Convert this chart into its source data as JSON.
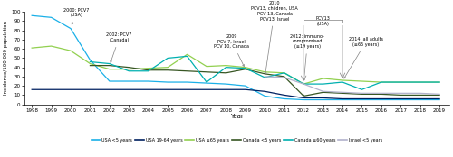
{
  "years": [
    1998,
    1999,
    2000,
    2001,
    2002,
    2003,
    2004,
    2005,
    2006,
    2007,
    2008,
    2009,
    2010,
    2011,
    2012,
    2013,
    2014,
    2015,
    2016,
    2017,
    2018,
    2019
  ],
  "usa_lt5": [
    96,
    94,
    82,
    48,
    25,
    25,
    25,
    24,
    24,
    23,
    22,
    20,
    9,
    6,
    5,
    5,
    5,
    5,
    5,
    5,
    5,
    5
  ],
  "usa_19_64": [
    16,
    16,
    16,
    16,
    16,
    16,
    16,
    16,
    16,
    16,
    16,
    16,
    14,
    10,
    7,
    7,
    6,
    6,
    6,
    6,
    6,
    6
  ],
  "usa_ge65": [
    61,
    63,
    58,
    44,
    38,
    38,
    39,
    40,
    54,
    41,
    42,
    40,
    35,
    34,
    22,
    28,
    26,
    25,
    24,
    24,
    24,
    24
  ],
  "canada_lt5": [
    null,
    null,
    null,
    42,
    42,
    40,
    37,
    37,
    36,
    35,
    34,
    38,
    33,
    30,
    9,
    13,
    12,
    11,
    11,
    10,
    10,
    10
  ],
  "canada_ge60": [
    null,
    null,
    null,
    46,
    44,
    36,
    36,
    50,
    52,
    24,
    40,
    39,
    29,
    34,
    22,
    22,
    24,
    16,
    24,
    24,
    24,
    24
  ],
  "israel_lt5": [
    null,
    null,
    null,
    null,
    null,
    null,
    null,
    null,
    null,
    null,
    null,
    null,
    30,
    29,
    22,
    14,
    13,
    12,
    12,
    12,
    12,
    11
  ],
  "colors": {
    "usa_lt5": "#1ab0e8",
    "usa_19_64": "#002060",
    "usa_ge65": "#92d050",
    "canada_lt5": "#375623",
    "canada_ge60": "#00b0b0",
    "israel_lt5": "#b2b2cc"
  },
  "xlabel": "Year",
  "ylabel": "Incidence/100,000 population",
  "ylim": [
    0,
    100
  ],
  "xlim": [
    1997.6,
    2019.5
  ],
  "yticks": [
    0,
    10,
    20,
    30,
    40,
    50,
    60,
    70,
    80,
    90,
    100
  ],
  "legend_labels": [
    "USA <5 years",
    "USA 19-64 years",
    "USA ≥65 years",
    "Canada <5 years",
    "Canada ≥60 years",
    "Israel <5 years"
  ],
  "legend_colors": [
    "#1ab0e8",
    "#002060",
    "#92d050",
    "#375623",
    "#00b0b0",
    "#b2b2cc"
  ]
}
